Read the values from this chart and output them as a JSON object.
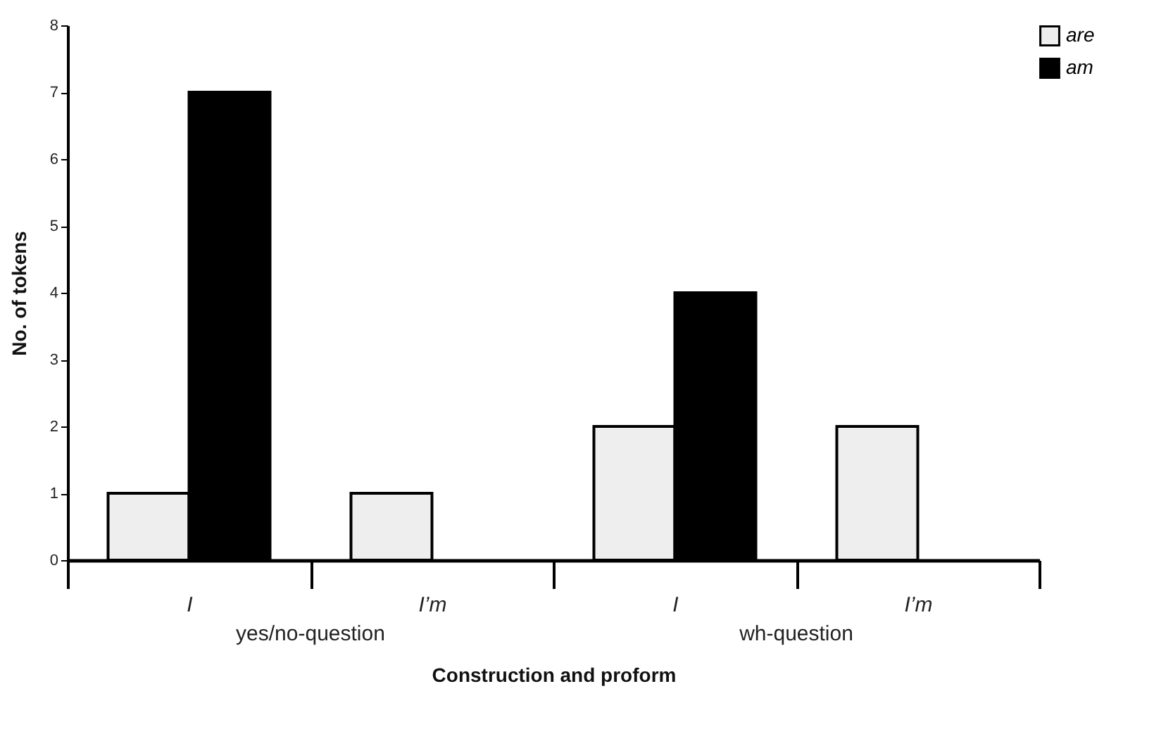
{
  "chart_data": {
    "type": "bar",
    "xlabel": "Construction and proform",
    "ylabel": "No. of tokens",
    "categories": [
      "I",
      "I’m",
      "I",
      "I’m"
    ],
    "series": [
      {
        "name": "are",
        "color": "#eeeeee",
        "values": [
          1,
          1,
          2,
          2
        ]
      },
      {
        "name": "am",
        "color": "#000000",
        "values": [
          7,
          null,
          4,
          null
        ]
      }
    ],
    "ylim": [
      0,
      8
    ],
    "yticks": [
      0,
      1,
      2,
      3,
      4,
      5,
      6,
      7,
      8
    ],
    "grid": false,
    "legend": "right",
    "annotations": [
      "yes/no-question",
      "wh-question"
    ]
  }
}
